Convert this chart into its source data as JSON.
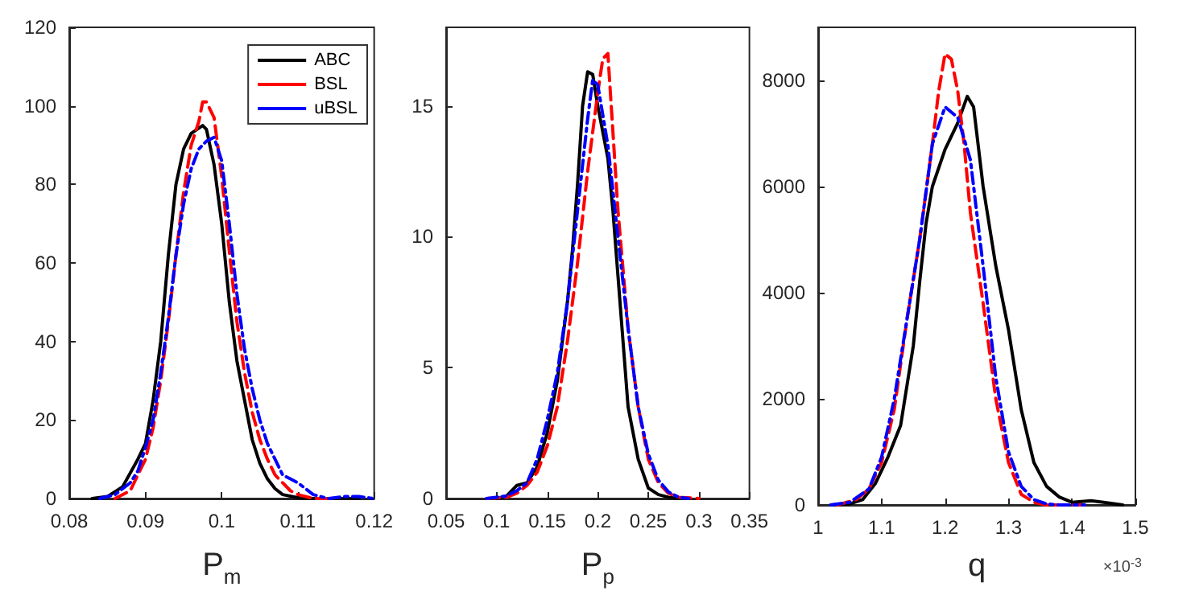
{
  "chart_data": [
    {
      "type": "line",
      "xlabel": "P$_{m}$",
      "xlim": [
        0.08,
        0.12
      ],
      "xticks": [
        0.08,
        0.09,
        0.1,
        0.11,
        0.12
      ],
      "ylim": [
        0,
        120
      ],
      "yticks": [
        0,
        20,
        40,
        60,
        80,
        100,
        120
      ],
      "legend": "top right",
      "series": [
        {
          "name": "ABC",
          "color": "#000000",
          "line_style": "solid",
          "x": [
            0.083,
            0.085,
            0.087,
            0.089,
            0.09,
            0.091,
            0.092,
            0.093,
            0.094,
            0.095,
            0.096,
            0.0975,
            0.098,
            0.099,
            0.1,
            0.101,
            0.102,
            0.103,
            0.104,
            0.105,
            0.106,
            0.107,
            0.108,
            0.11,
            0.112,
            0.118
          ],
          "values": [
            0,
            0.5,
            3,
            10,
            14,
            25,
            40,
            62,
            80,
            89,
            93,
            95,
            94,
            85,
            70,
            50,
            35,
            25,
            15,
            9,
            5,
            2.5,
            1,
            0.2,
            0,
            0
          ]
        },
        {
          "name": "BSL",
          "color": "#ff0000",
          "line_style": "dashed",
          "x": [
            0.086,
            0.088,
            0.089,
            0.09,
            0.091,
            0.092,
            0.093,
            0.094,
            0.095,
            0.096,
            0.097,
            0.0975,
            0.098,
            0.099,
            0.1,
            0.101,
            0.102,
            0.103,
            0.104,
            0.105,
            0.106,
            0.107,
            0.108,
            0.109,
            0.11,
            0.112,
            0.114
          ],
          "values": [
            0,
            2,
            6,
            10,
            18,
            30,
            45,
            62,
            78,
            90,
            96,
            101,
            101,
            97,
            82,
            63,
            45,
            32,
            22,
            15,
            10,
            6,
            4,
            2,
            1,
            0,
            0
          ]
        },
        {
          "name": "uBSL",
          "color": "#0000ff",
          "line_style": "dashdot",
          "x": [
            0.084,
            0.086,
            0.088,
            0.089,
            0.09,
            0.091,
            0.092,
            0.093,
            0.094,
            0.095,
            0.096,
            0.097,
            0.098,
            0.099,
            0.1,
            0.101,
            0.102,
            0.103,
            0.104,
            0.105,
            0.106,
            0.107,
            0.108,
            0.109,
            0.11,
            0.111,
            0.112,
            0.113,
            0.114,
            0.116,
            0.118,
            0.12
          ],
          "values": [
            0,
            1,
            4,
            7,
            13,
            20,
            32,
            46,
            62,
            75,
            84,
            89,
            91,
            92,
            86,
            70,
            52,
            38,
            28,
            20,
            14,
            10,
            6,
            5,
            4,
            2.5,
            1,
            0.5,
            0,
            0.5,
            0.5,
            0
          ]
        }
      ]
    },
    {
      "type": "line",
      "xlabel": "P$_{p}$",
      "xlim": [
        0.05,
        0.35
      ],
      "xticks": [
        0.05,
        0.1,
        0.15,
        0.2,
        0.25,
        0.3,
        0.35
      ],
      "ylim": [
        0,
        18
      ],
      "yticks": [
        0,
        5,
        10,
        15
      ],
      "series": [
        {
          "color": "#000000",
          "line_style": "solid",
          "x": [
            0.1,
            0.11,
            0.12,
            0.13,
            0.14,
            0.15,
            0.16,
            0.17,
            0.175,
            0.18,
            0.185,
            0.19,
            0.195,
            0.2,
            0.21,
            0.215,
            0.22,
            0.225,
            0.23,
            0.24,
            0.25,
            0.26,
            0.27,
            0.28
          ],
          "values": [
            0,
            0.1,
            0.5,
            0.6,
            1.2,
            2.5,
            4.5,
            7.5,
            9.5,
            12,
            15,
            16.3,
            16.2,
            15,
            13,
            11,
            8.5,
            6,
            3.5,
            1.5,
            0.4,
            0.15,
            0.05,
            0
          ]
        },
        {
          "color": "#ff0000",
          "line_style": "dashed",
          "x": [
            0.09,
            0.11,
            0.12,
            0.13,
            0.14,
            0.15,
            0.16,
            0.17,
            0.18,
            0.19,
            0.2,
            0.205,
            0.21,
            0.215,
            0.22,
            0.23,
            0.24,
            0.25,
            0.26,
            0.27,
            0.28,
            0.3
          ],
          "values": [
            0,
            0.05,
            0.2,
            0.5,
            1,
            2,
            3.5,
            6,
            9,
            12.5,
            15.5,
            16.8,
            17,
            14,
            11,
            6.5,
            3.5,
            1.5,
            0.6,
            0.2,
            0.05,
            0
          ]
        },
        {
          "color": "#0000ff",
          "line_style": "dashdot",
          "x": [
            0.09,
            0.11,
            0.12,
            0.13,
            0.14,
            0.15,
            0.16,
            0.17,
            0.18,
            0.19,
            0.195,
            0.2,
            0.21,
            0.22,
            0.23,
            0.24,
            0.25,
            0.26,
            0.27,
            0.28,
            0.29
          ],
          "values": [
            0,
            0.1,
            0.3,
            0.6,
            1.5,
            3,
            4.8,
            7.5,
            11,
            14.5,
            16,
            15.8,
            13.5,
            10,
            6.5,
            3.5,
            1.7,
            0.7,
            0.25,
            0.05,
            0
          ]
        }
      ]
    },
    {
      "type": "line",
      "xlabel": "q",
      "xlim": [
        1,
        1.5
      ],
      "xticks": [
        1,
        1.1,
        1.2,
        1.3,
        1.4,
        1.5
      ],
      "ylim": [
        0,
        9000
      ],
      "yticks": [
        0,
        2000,
        4000,
        6000,
        8000
      ],
      "annotations": [
        "×10$^{-3}$"
      ],
      "series": [
        {
          "color": "#000000",
          "line_style": "solid",
          "x": [
            1.02,
            1.05,
            1.07,
            1.09,
            1.11,
            1.13,
            1.15,
            1.16,
            1.17,
            1.18,
            1.2,
            1.22,
            1.235,
            1.245,
            1.26,
            1.28,
            1.3,
            1.32,
            1.34,
            1.36,
            1.38,
            1.4,
            1.43,
            1.45,
            1.48
          ],
          "values": [
            0,
            20,
            100,
            400,
            900,
            1500,
            3000,
            4200,
            5300,
            6000,
            6700,
            7200,
            7700,
            7500,
            6000,
            4500,
            3300,
            1800,
            800,
            350,
            150,
            50,
            80,
            50,
            0
          ]
        },
        {
          "color": "#ff0000",
          "line_style": "dashed",
          "x": [
            1.03,
            1.06,
            1.08,
            1.1,
            1.12,
            1.14,
            1.16,
            1.18,
            1.19,
            1.2,
            1.21,
            1.22,
            1.23,
            1.24,
            1.26,
            1.28,
            1.3,
            1.32,
            1.34,
            1.36,
            1.42
          ],
          "values": [
            0,
            100,
            300,
            800,
            1800,
            3500,
            5000,
            6800,
            7800,
            8500,
            8400,
            7800,
            6800,
            5500,
            3800,
            2000,
            800,
            200,
            50,
            0,
            0
          ]
        },
        {
          "color": "#0000ff",
          "line_style": "dashdot",
          "x": [
            1.02,
            1.05,
            1.08,
            1.1,
            1.12,
            1.14,
            1.16,
            1.18,
            1.2,
            1.22,
            1.24,
            1.26,
            1.28,
            1.3,
            1.32,
            1.34,
            1.36,
            1.38,
            1.42
          ],
          "values": [
            0,
            50,
            300,
            900,
            2000,
            3500,
            5000,
            6800,
            7500,
            7300,
            6500,
            4500,
            2400,
            1000,
            350,
            100,
            20,
            0,
            0
          ]
        }
      ]
    }
  ]
}
